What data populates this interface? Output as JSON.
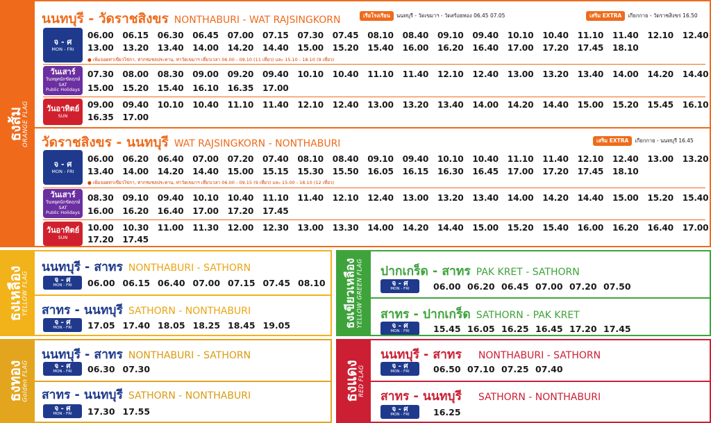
{
  "orange": {
    "flag_th": "ธงส้ม",
    "flag_en": "ORANGE FLAG",
    "color": "#ef6b1b",
    "r1": {
      "th": "นนทบุรี - วัดราชสิงขร",
      "en": "NONTHABURI - WAT RAJSINGKORN",
      "school_label": "เรือโรงเรียน",
      "school_text": "นนทบุรี - วัดเขมาฯ - วัดสร้อยทอง 06.45  07.05",
      "extra_label": "เสริม EXTRA",
      "extra_text": "เกียกกาย - วัดราชสิงขร 16.50",
      "mon_row1": [
        "06.00",
        "06.15",
        "06.30",
        "06.45",
        "07.00",
        "07.15",
        "07.30",
        "07.45",
        "08.10",
        "08.40",
        "09.10",
        "09.40",
        "10.10",
        "10.40",
        "11.10",
        "11.40",
        "12.10",
        "12.40"
      ],
      "mon_row2": [
        "13.00",
        "13.20",
        "13.40",
        "14.00",
        "14.20",
        "14.40",
        "15.00",
        "15.20",
        "15.40",
        "16.00",
        "16.20",
        "16.40",
        "17.00",
        "17.20",
        "17.45",
        "18.10"
      ],
      "mon_note": "● เพิ่มจอดท่าเขียวไข่กา, ท่ากรมชลประทาน, ท่าวัดเขมาฯ เที่ยวเวลา 06.00 - 09.10 (11 เที่ยว) และ 15.10 - 18.10 (9 เที่ยว)",
      "sat_row1": [
        "07.30",
        "08.00",
        "08.30",
        "09.00",
        "09.20",
        "09.40",
        "10.10",
        "10.40",
        "11.10",
        "11.40",
        "12.10",
        "12.40",
        "13.00",
        "13.20",
        "13.40",
        "14.00",
        "14.20",
        "14.40"
      ],
      "sat_row2": [
        "15.00",
        "15.20",
        "15.40",
        "16.10",
        "16.35",
        "17.00"
      ],
      "sun_row1": [
        "09.00",
        "09.40",
        "10.10",
        "10.40",
        "11.10",
        "11.40",
        "12.10",
        "12.40",
        "13.00",
        "13.20",
        "13.40",
        "14.00",
        "14.20",
        "14.40",
        "15.00",
        "15.20",
        "15.45",
        "16.10"
      ],
      "sun_row2": [
        "16.35",
        "17.00"
      ]
    },
    "r2": {
      "th": "วัดราชสิงขร - นนทบุรี",
      "en": "WAT RAJSINGKORN - NONTHABURI",
      "extra_label": "เสริม EXTRA",
      "extra_text": "เกียกกาย - นนทบุรี 16.45",
      "mon_row1": [
        "06.00",
        "06.20",
        "06.40",
        "07.00",
        "07.20",
        "07.40",
        "08.10",
        "08.40",
        "09.10",
        "09.40",
        "10.10",
        "10.40",
        "11.10",
        "11.40",
        "12.10",
        "12.40",
        "13.00",
        "13.20"
      ],
      "mon_row2": [
        "13.40",
        "14.00",
        "14.20",
        "14.40",
        "15.00",
        "15.15",
        "15.30",
        "15.50",
        "16.05",
        "16.15",
        "16.30",
        "16.45",
        "17.00",
        "17.20",
        "17.45",
        "18.10"
      ],
      "mon_note": "● เพิ่มจอดท่าเขียวไข่กา, ท่ากรมชลประทาน, ท่าวัดเขมาฯ เที่ยวเวลา 06.00 - 09.15 (9 เที่ยว) และ 15.00 - 18.10 (12 เที่ยว)",
      "sat_row1": [
        "08.30",
        "09.10",
        "09.40",
        "10.10",
        "10.40",
        "11.10",
        "11.40",
        "12.10",
        "12.40",
        "13.00",
        "13.20",
        "13.40",
        "14.00",
        "14.20",
        "14.40",
        "15.00",
        "15.20",
        "15.40"
      ],
      "sat_row2": [
        "16.00",
        "16.20",
        "16.40",
        "17.00",
        "17.20",
        "17.45"
      ],
      "sun_row1": [
        "10.00",
        "10.30",
        "11.00",
        "11.30",
        "12.00",
        "12.30",
        "13.00",
        "13.30",
        "14.00",
        "14.20",
        "14.40",
        "15.00",
        "15.20",
        "15.40",
        "16.00",
        "16.20",
        "16.40",
        "17.00"
      ],
      "sun_row2": [
        "17.20",
        "17.45"
      ]
    },
    "days": {
      "mon_th": "จ - ศ",
      "mon_en": "MON - FRI",
      "sat_th": "วันเสาร์",
      "sat_sub": "วันหยุดนักขัตฤกษ์",
      "sat_en": "SAT",
      "sat_en2": "Public Holidays",
      "sun_th": "วันอาทิตย์",
      "sun_en": "SUN"
    }
  },
  "yellow": {
    "flag_th": "ธงเหลือง",
    "flag_en": "YELLOW FLAG",
    "color": "#f2b21a",
    "r1_th": "นนทบุรี - สาทร",
    "r1_en": "NONTHABURI - SATHORN",
    "r1_times": [
      "06.00",
      "06.15",
      "06.40",
      "07.00",
      "07.15",
      "07.45",
      "08.10"
    ],
    "r2_th": "สาทร - นนทบุรี",
    "r2_en": "SATHORN - NONTHABURI",
    "r2_times": [
      "17.05",
      "17.40",
      "18.05",
      "18.25",
      "18.45",
      "19.05"
    ]
  },
  "golden": {
    "flag_th": "ธงทอง",
    "flag_en": "Golden FLAG",
    "color": "#e3a51e",
    "r1_th": "นนทบุรี - สาทร",
    "r1_en": "NONTHABURI - SATHORN",
    "r1_times": [
      "06.30",
      "07.30"
    ],
    "r2_th": "สาทร - นนทบุรี",
    "r2_en": "SATHORN - NONTHABURI",
    "r2_times": [
      "17.30",
      "17.55"
    ]
  },
  "green": {
    "flag_th": "ธงเขียวเหลือง",
    "flag_en": "YELLOW GREEN FLAG",
    "color": "#3ea33b",
    "r1_th": "ปากเกร็ด - สาทร",
    "r1_en": "PAK KRET - SATHORN",
    "r1_times": [
      "06.00",
      "06.20",
      "06.45",
      "07.00",
      "07.20",
      "07.50"
    ],
    "r2_th": "สาทร - ปากเกร็ด",
    "r2_en": "SATHORN - PAK KRET",
    "r2_times": [
      "15.45",
      "16.05",
      "16.25",
      "16.45",
      "17.20",
      "17.45"
    ]
  },
  "red": {
    "flag_th": "ธงแดง",
    "flag_en": "RED FLAG",
    "color": "#cc1f33",
    "r1_th": "นนทบุรี - สาทร",
    "r1_en": "NONTHABURI - SATHORN",
    "r1_times": [
      "06.50",
      "07.10",
      "07.25",
      "07.40"
    ],
    "r2_th": "สาทร - นนทบุรี",
    "r2_en": "SATHORN - NONTHABURI",
    "r2_times": [
      "16.25"
    ]
  },
  "mon_fri_th": "จ - ศ",
  "mon_fri_en": "MON - FRI"
}
